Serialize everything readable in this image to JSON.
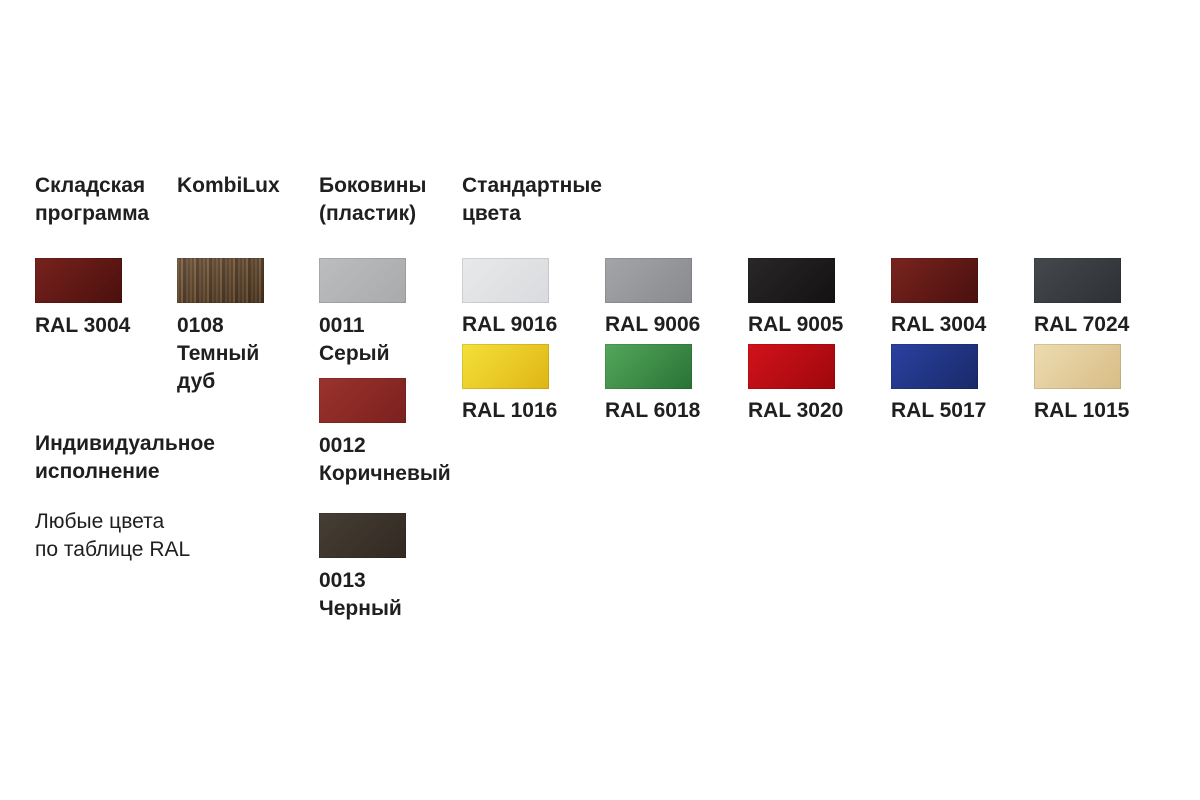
{
  "page": {
    "background": "#ffffff",
    "text_color": "#1f1f1f"
  },
  "sections": {
    "warehouse": {
      "title_lines": [
        "Складская",
        "программа"
      ],
      "swatches": [
        {
          "id": "ral-3004-warehouse",
          "label_lines": [
            "RAL 3004"
          ],
          "colors": [
            "#77221d",
            "#4b100d"
          ]
        }
      ]
    },
    "kombilux": {
      "title_lines": [
        "KombiLux"
      ],
      "swatches": [
        {
          "id": "0108-dark-oak",
          "label_lines": [
            "0108",
            "Темный",
            "дуб"
          ],
          "wood_stripes": [
            "#6e5336",
            "#5b4027",
            "#7b6040",
            "#503722",
            "#665036"
          ]
        }
      ]
    },
    "sides": {
      "title_lines": [
        "Боковины",
        "(пластик)"
      ],
      "swatches": [
        {
          "id": "0011-gray",
          "label_lines": [
            "0011",
            "Серый"
          ],
          "colors": [
            "#bbbdbf",
            "#a8aaac"
          ]
        },
        {
          "id": "0012-brown",
          "label_lines": [
            "0012",
            "Коричневый"
          ],
          "colors": [
            "#9a332d",
            "#7c201e"
          ]
        },
        {
          "id": "0013-black",
          "label_lines": [
            "0013",
            "Черный"
          ],
          "colors": [
            "#463d34",
            "#322a22"
          ]
        }
      ]
    },
    "standard": {
      "title_lines": [
        "Стандартные",
        "цвета"
      ],
      "swatches": [
        {
          "id": "ral-9016",
          "label_lines": [
            "RAL 9016"
          ],
          "colors": [
            "#e7e9ea",
            "#d9dbde"
          ]
        },
        {
          "id": "ral-9006",
          "label_lines": [
            "RAL 9006"
          ],
          "colors": [
            "#a3a5a8",
            "#888a8e"
          ]
        },
        {
          "id": "ral-9005",
          "label_lines": [
            "RAL 9005"
          ],
          "colors": [
            "#2a2728",
            "#141112"
          ]
        },
        {
          "id": "ral-3004",
          "label_lines": [
            "RAL 3004"
          ],
          "colors": [
            "#7a241e",
            "#4a100e"
          ]
        },
        {
          "id": "ral-7024",
          "label_lines": [
            "RAL 7024"
          ],
          "colors": [
            "#45494e",
            "#2d3135"
          ]
        },
        {
          "id": "ral-1016",
          "label_lines": [
            "RAL 1016"
          ],
          "colors": [
            "#f5e03a",
            "#dfb514"
          ]
        },
        {
          "id": "ral-6018",
          "label_lines": [
            "RAL 6018"
          ],
          "colors": [
            "#54a75b",
            "#287335"
          ]
        },
        {
          "id": "ral-3020",
          "label_lines": [
            "RAL 3020"
          ],
          "colors": [
            "#d2121a",
            "#9e070c"
          ]
        },
        {
          "id": "ral-5017",
          "label_lines": [
            "RAL 5017"
          ],
          "colors": [
            "#2a41a1",
            "#192968"
          ]
        },
        {
          "id": "ral-1015",
          "label_lines": [
            "RAL 1015"
          ],
          "colors": [
            "#eddcb0",
            "#d7bc86"
          ]
        }
      ]
    },
    "individual": {
      "title_lines": [
        "Индивидуальное",
        "исполнение"
      ],
      "body_lines": [
        "Любые цвета",
        "по таблице RAL"
      ]
    }
  }
}
